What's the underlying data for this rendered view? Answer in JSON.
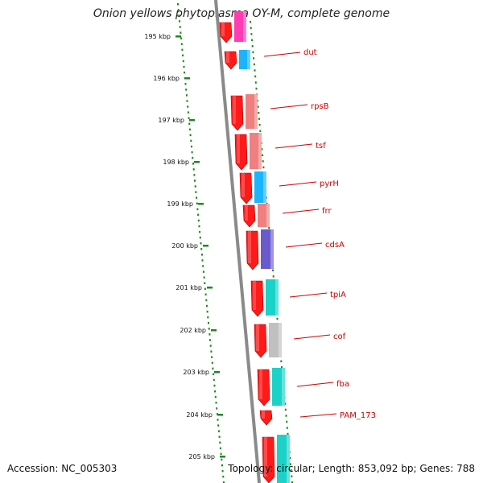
{
  "title": "Onion yellows phytoplasma OY-M, complete genome",
  "accession": "Accession: NC_005303",
  "topology": "Topology: circular; Length: 853,092 bp; Genes: 788",
  "colors": {
    "backbone": "#8a8a8a",
    "gc_dots": "#1a8a1a",
    "forward_gene": "#ff1a1a",
    "label": "#cc0000"
  },
  "scale_ticks": [
    {
      "kbp": 195,
      "label": "195 kbp"
    },
    {
      "kbp": 196,
      "label": "196 kbp"
    },
    {
      "kbp": 197,
      "label": "197 kbp"
    },
    {
      "kbp": 198,
      "label": "198 kbp"
    },
    {
      "kbp": 199,
      "label": "199 kbp"
    },
    {
      "kbp": 200,
      "label": "200 kbp"
    },
    {
      "kbp": 201,
      "label": "201 kbp"
    },
    {
      "kbp": 202,
      "label": "202 kbp"
    },
    {
      "kbp": 203,
      "label": "203 kbp"
    },
    {
      "kbp": 204,
      "label": "204 kbp"
    },
    {
      "kbp": 205,
      "label": "205 kbp"
    }
  ],
  "genes": [
    {
      "name": "",
      "color": "#ff3cb4"
    },
    {
      "name": "dut",
      "color": "#1ab4ff"
    },
    {
      "name": "rpsB",
      "color": "#f08080"
    },
    {
      "name": "tsf",
      "color": "#f08080"
    },
    {
      "name": "pyrH",
      "color": "#1ab4ff"
    },
    {
      "name": "frr",
      "color": "#f08080"
    },
    {
      "name": "cdsA",
      "color": "#6a5acd"
    },
    {
      "name": "tpiA",
      "color": "#1ad2c8"
    },
    {
      "name": "cof",
      "color": "#c0c0c0"
    },
    {
      "name": "fba",
      "color": "#1ad2c8"
    },
    {
      "name": "PAM_173",
      "color": ""
    },
    {
      "name": "",
      "color": "#1ad2c8"
    }
  ]
}
